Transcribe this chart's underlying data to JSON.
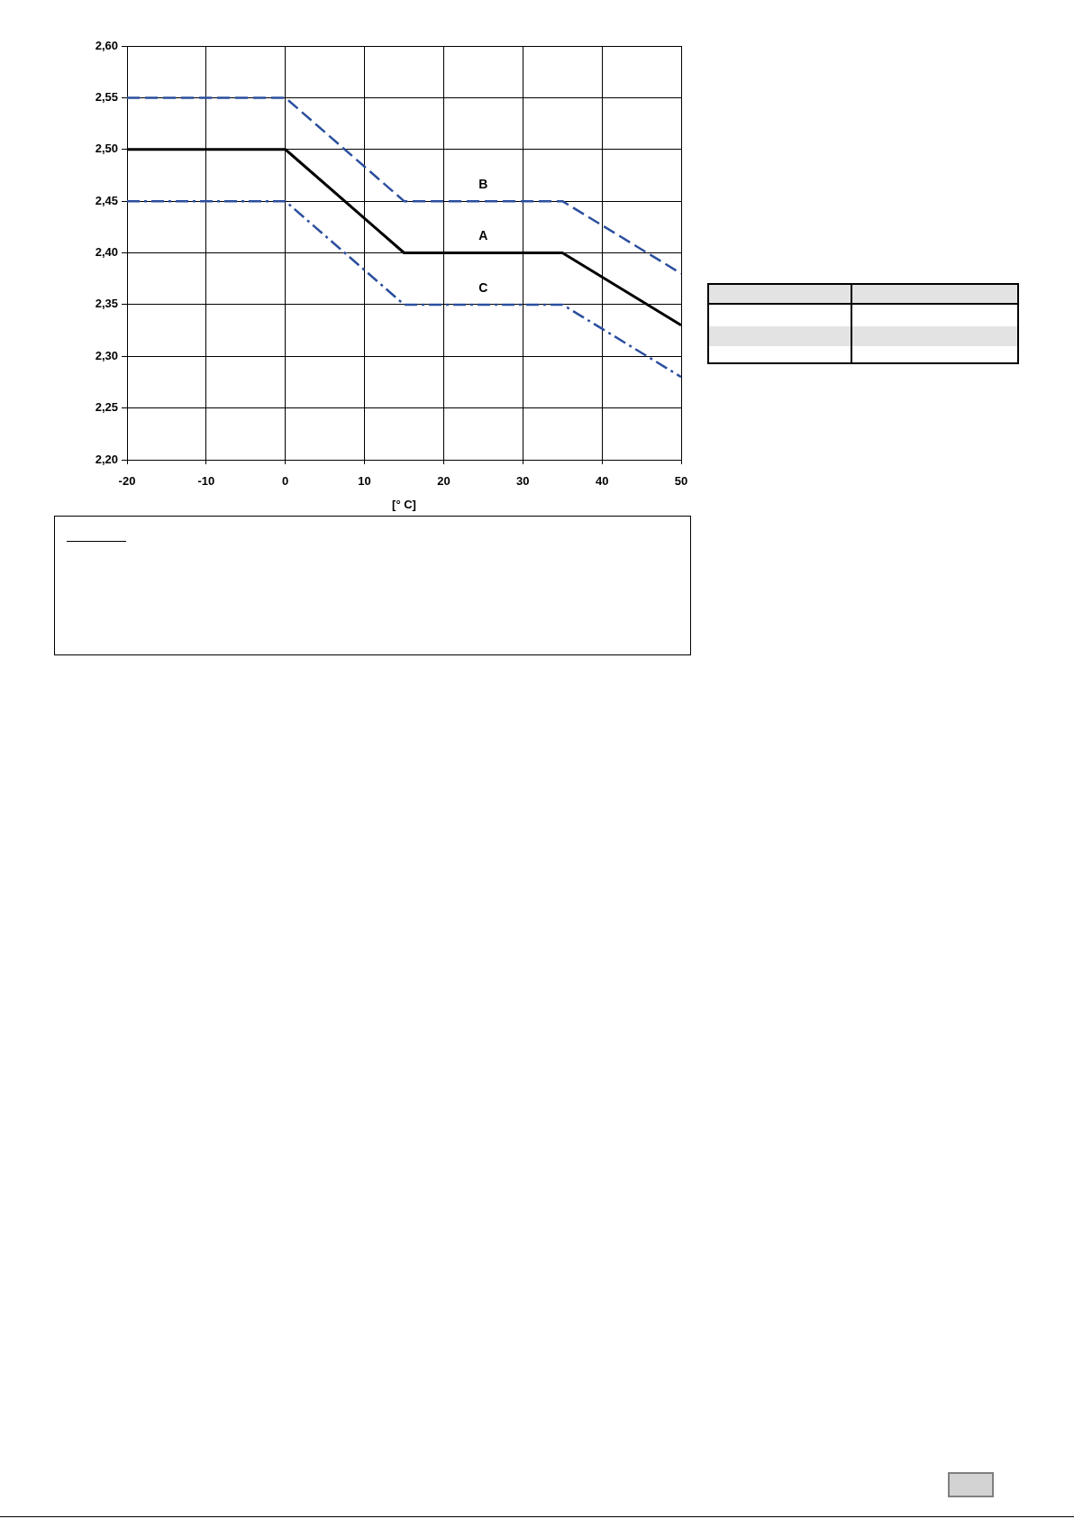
{
  "chart_data": {
    "type": "line",
    "xlabel": "[° C]",
    "x": [
      -20,
      0,
      15,
      35,
      50
    ],
    "series": [
      {
        "name": "A",
        "color": "#000000",
        "line_style": "solid",
        "values": [
          2.5,
          2.5,
          2.4,
          2.4,
          2.33
        ]
      },
      {
        "name": "B",
        "color": "#2b4f9e",
        "line_style": "dashed",
        "values": [
          2.55,
          2.55,
          2.45,
          2.45,
          2.38
        ]
      },
      {
        "name": "C",
        "color": "#2b4f9e",
        "line_style": "dashdot",
        "values": [
          2.45,
          2.45,
          2.35,
          2.35,
          2.28
        ]
      }
    ],
    "xlim": [
      -20,
      50
    ],
    "xticks": [
      -20,
      -10,
      0,
      10,
      20,
      30,
      40,
      50
    ],
    "ylim": [
      2.2,
      2.6
    ],
    "yticks": [
      {
        "value": 2.2,
        "label": "2,20"
      },
      {
        "value": 2.25,
        "label": "2,25"
      },
      {
        "value": 2.3,
        "label": "2,30"
      },
      {
        "value": 2.35,
        "label": "2,35"
      },
      {
        "value": 2.4,
        "label": "2,40"
      },
      {
        "value": 2.45,
        "label": "2,45"
      },
      {
        "value": 2.5,
        "label": "2,50"
      },
      {
        "value": 2.55,
        "label": "2,55"
      },
      {
        "value": 2.6,
        "label": "2,60"
      }
    ],
    "grid": true,
    "legend": false,
    "marker": "none"
  }
}
